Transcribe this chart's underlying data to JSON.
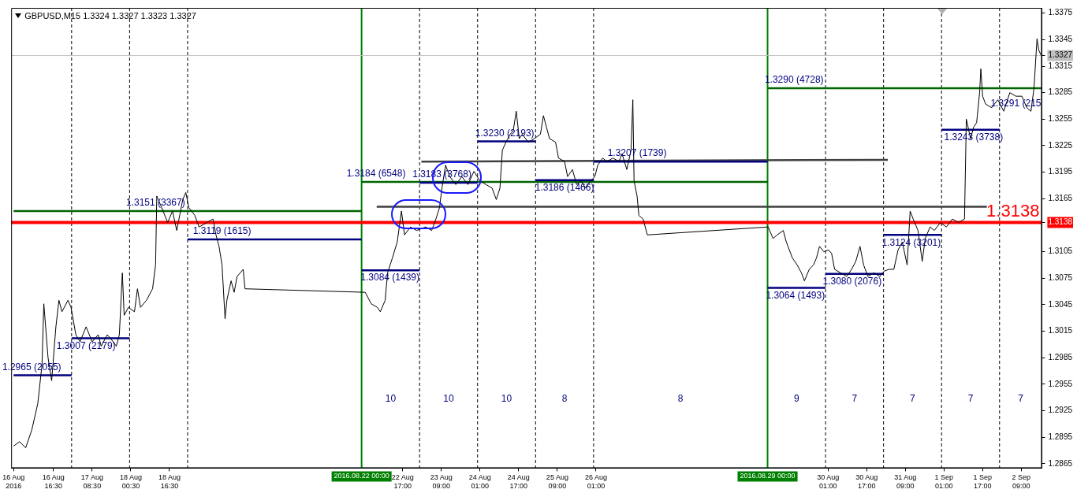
{
  "chart_data": {
    "type": "line",
    "title": "GBPUSD,M15  1.3324 1.3327 1.3323 1.3327",
    "marker": "none",
    "line_style": "solid",
    "xlim": [
      "2016-08-15T23:00",
      "2016-09-02T17:30"
    ],
    "ylim": [
      1.286,
      1.3381
    ],
    "xticks": [
      {
        "value": "2016-08-16T00:00",
        "label": "16 Aug 2016"
      },
      {
        "value": "2016-08-16T16:30",
        "label": "16 Aug 16:30"
      },
      {
        "value": "2016-08-17T08:30",
        "label": "17 Aug 08:30"
      },
      {
        "value": "2016-08-18T00:30",
        "label": "18 Aug 00:30"
      },
      {
        "value": "2016-08-18T16:30",
        "label": "18 Aug 16:30"
      },
      {
        "value": "2016-08-22T17:00",
        "label": "22 Aug 17:00"
      },
      {
        "value": "2016-08-23T09:00",
        "label": "23 Aug 09:00"
      },
      {
        "value": "2016-08-24T01:00",
        "label": "24 Aug 01:00"
      },
      {
        "value": "2016-08-24T17:00",
        "label": "24 Aug 17:00"
      },
      {
        "value": "2016-08-25T09:00",
        "label": "25 Aug 09:00"
      },
      {
        "value": "2016-08-26T01:00",
        "label": "26 Aug 01:00"
      },
      {
        "value": "2016-08-30T01:00",
        "label": "30 Aug 01:00"
      },
      {
        "value": "2016-08-30T17:00",
        "label": "30 Aug 17:00"
      },
      {
        "value": "2016-08-31T09:00",
        "label": "31 Aug 09:00"
      },
      {
        "value": "2016-09-01T01:00",
        "label": "1 Sep 01:00"
      },
      {
        "value": "2016-09-01T17:00",
        "label": "1 Sep 17:00"
      },
      {
        "value": "2016-09-02T09:00",
        "label": "2 Sep 09:00"
      }
    ],
    "yticks": [
      1.2865,
      1.2895,
      1.2925,
      1.2955,
      1.2985,
      1.3015,
      1.3045,
      1.3075,
      1.3105,
      1.3138,
      1.3165,
      1.3195,
      1.3225,
      1.3255,
      1.3285,
      1.3315,
      1.3327,
      1.3345,
      1.3375
    ],
    "series": [
      {
        "color": "#000000",
        "x": [
          "2016-08-16T00:00",
          "2016-08-16T02:30",
          "2016-08-16T05:00",
          "2016-08-16T07:30",
          "2016-08-16T10:00",
          "2016-08-16T11:45",
          "2016-08-16T12:30",
          "2016-08-16T14:15",
          "2016-08-16T15:45",
          "2016-08-16T17:30",
          "2016-08-16T18:45",
          "2016-08-16T20:00",
          "2016-08-16T22:30",
          "2016-08-16T23:45",
          "2016-08-17T01:45",
          "2016-08-17T03:30",
          "2016-08-17T06:00",
          "2016-08-17T08:30",
          "2016-08-17T11:00",
          "2016-08-17T12:15",
          "2016-08-17T14:45",
          "2016-08-17T17:15",
          "2016-08-17T18:30",
          "2016-08-17T19:45",
          "2016-08-17T21:00",
          "2016-08-17T21:45",
          "2016-08-17T23:30",
          "2016-08-18T02:00",
          "2016-08-18T03:15",
          "2016-08-18T04:30",
          "2016-08-18T07:00",
          "2016-08-18T09:30",
          "2016-08-18T10:45",
          "2016-08-18T11:15",
          "2016-08-18T13:15",
          "2016-08-18T15:45",
          "2016-08-18T17:45",
          "2016-08-18T19:30",
          "2016-08-18T22:00",
          "2016-08-18T23:15",
          "2016-08-19T00:30",
          "2016-08-19T03:00",
          "2016-08-19T04:45",
          "2016-08-19T08:00",
          "2016-08-19T10:30",
          "2016-08-19T11:45",
          "2016-08-19T13:00",
          "2016-08-19T14:15",
          "2016-08-19T15:30",
          "2016-08-19T16:15",
          "2016-08-19T18:00",
          "2016-08-19T19:15",
          "2016-08-19T20:30",
          "2016-08-19T23:00",
          "2016-08-19T23:45",
          "2016-08-22T01:30",
          "2016-08-22T04:00",
          "2016-08-22T06:30",
          "2016-08-22T07:45",
          "2016-08-22T09:45",
          "2016-08-22T10:45",
          "2016-08-22T12:45",
          "2016-08-22T14:45",
          "2016-08-22T16:30",
          "2016-08-22T17:45",
          "2016-08-22T20:15",
          "2016-08-22T22:45",
          "2016-08-23T02:30",
          "2016-08-23T05:00",
          "2016-08-23T06:45",
          "2016-08-23T08:15",
          "2016-08-23T09:15",
          "2016-08-23T10:45",
          "2016-08-23T12:30",
          "2016-08-23T15:00",
          "2016-08-23T17:30",
          "2016-08-23T20:00",
          "2016-08-23T22:30",
          "2016-08-24T01:00",
          "2016-08-24T03:30",
          "2016-08-24T06:00",
          "2016-08-24T07:45",
          "2016-08-24T09:15",
          "2016-08-24T10:15",
          "2016-08-24T11:45",
          "2016-08-24T13:30",
          "2016-08-24T14:45",
          "2016-08-24T16:00",
          "2016-08-24T17:15",
          "2016-08-24T18:30",
          "2016-08-24T21:00",
          "2016-08-24T23:30",
          "2016-08-25T02:00",
          "2016-08-25T03:15",
          "2016-08-25T04:30",
          "2016-08-25T05:45",
          "2016-08-25T08:15",
          "2016-08-25T09:30",
          "2016-08-25T12:00",
          "2016-08-25T13:15",
          "2016-08-25T15:15",
          "2016-08-25T17:00",
          "2016-08-25T18:45",
          "2016-08-25T20:45",
          "2016-08-25T22:45",
          "2016-08-26T00:30",
          "2016-08-26T01:45",
          "2016-08-26T03:45",
          "2016-08-26T05:30",
          "2016-08-26T08:00",
          "2016-08-26T10:30",
          "2016-08-26T11:45",
          "2016-08-26T13:45",
          "2016-08-26T15:30",
          "2016-08-26T16:15",
          "2016-08-26T16:45",
          "2016-08-26T18:00",
          "2016-08-26T18:45",
          "2016-08-26T20:30",
          "2016-08-26T22:15",
          "2016-08-29T00:15",
          "2016-08-29T02:15",
          "2016-08-29T04:00",
          "2016-08-29T06:30",
          "2016-08-29T07:45",
          "2016-08-29T10:15",
          "2016-08-29T12:15",
          "2016-08-29T14:00",
          "2016-08-29T15:15",
          "2016-08-29T17:15",
          "2016-08-29T19:00",
          "2016-08-29T20:15",
          "2016-08-29T21:30",
          "2016-08-29T23:15",
          "2016-08-30T01:15",
          "2016-08-30T02:30",
          "2016-08-30T03:45",
          "2016-08-30T06:15",
          "2016-08-30T08:45",
          "2016-08-30T10:45",
          "2016-08-30T12:30",
          "2016-08-30T14:15",
          "2016-08-30T15:45",
          "2016-08-30T17:30",
          "2016-08-30T20:00",
          "2016-08-30T22:30",
          "2016-08-31T00:15",
          "2016-08-31T02:15",
          "2016-08-31T04:15",
          "2016-08-31T06:00",
          "2016-08-31T07:45",
          "2016-08-31T09:45",
          "2016-08-31T11:00",
          "2016-08-31T12:15",
          "2016-08-31T14:15",
          "2016-08-31T16:00",
          "2016-08-31T17:15",
          "2016-08-31T19:15",
          "2016-08-31T21:00",
          "2016-08-31T23:30",
          "2016-09-01T02:00",
          "2016-09-01T04:30",
          "2016-09-01T07:00",
          "2016-09-01T09:30",
          "2016-09-01T10:15",
          "2016-09-01T12:00",
          "2016-09-01T13:15",
          "2016-09-01T14:30",
          "2016-09-01T15:45",
          "2016-09-01T16:15",
          "2016-09-01T17:00",
          "2016-09-01T18:15",
          "2016-09-01T20:45",
          "2016-09-01T23:15",
          "2016-09-02T01:45",
          "2016-09-02T04:15",
          "2016-09-02T06:45",
          "2016-09-02T09:15",
          "2016-09-02T11:15",
          "2016-09-02T13:00",
          "2016-09-02T14:15",
          "2016-09-02T15:30",
          "2016-09-02T16:15",
          "2016-09-02T17:15"
        ],
        "values": [
          1.2885,
          1.289,
          1.2883,
          1.2903,
          1.2933,
          1.2977,
          1.3046,
          1.2985,
          1.2959,
          1.302,
          1.305,
          1.3037,
          1.305,
          1.3042,
          1.3011,
          1.3003,
          1.302,
          1.3003,
          1.3011,
          1.2998,
          1.3011,
          1.3003,
          1.2998,
          1.3011,
          1.3081,
          1.3033,
          1.3042,
          1.3037,
          1.3063,
          1.3042,
          1.305,
          1.3063,
          1.309,
          1.3168,
          1.3155,
          1.3138,
          1.3151,
          1.3129,
          1.3164,
          1.3172,
          1.3155,
          1.3146,
          1.3133,
          1.3138,
          1.3142,
          1.3124,
          1.3111,
          1.309,
          1.3029,
          1.305,
          1.3072,
          1.3059,
          1.3077,
          1.3085,
          1.3063,
          1.3059,
          1.3046,
          1.3042,
          1.3037,
          1.305,
          1.3081,
          1.3098,
          1.3116,
          1.3151,
          1.3124,
          1.3133,
          1.3129,
          1.3133,
          1.3129,
          1.3142,
          1.3155,
          1.3177,
          1.3203,
          1.319,
          1.3181,
          1.319,
          1.3181,
          1.3196,
          1.3185,
          1.3181,
          1.3177,
          1.3164,
          1.3177,
          1.322,
          1.3229,
          1.3238,
          1.3242,
          1.3264,
          1.3233,
          1.3238,
          1.3229,
          1.3233,
          1.3238,
          1.3259,
          1.3246,
          1.3233,
          1.3229,
          1.3211,
          1.3207,
          1.319,
          1.3198,
          1.3181,
          1.3185,
          1.3177,
          1.3185,
          1.319,
          1.3203,
          1.3211,
          1.3207,
          1.3211,
          1.3207,
          1.3216,
          1.3198,
          1.322,
          1.3277,
          1.3185,
          1.3168,
          1.3146,
          1.3142,
          1.3124,
          1.3133,
          1.312,
          1.3124,
          1.3129,
          1.3116,
          1.3098,
          1.309,
          1.3081,
          1.3072,
          1.3085,
          1.309,
          1.3098,
          1.3111,
          1.3105,
          1.3107,
          1.3103,
          1.3085,
          1.3081,
          1.3077,
          1.3085,
          1.3094,
          1.3111,
          1.309,
          1.3077,
          1.3081,
          1.3077,
          1.3083,
          1.3085,
          1.3085,
          1.3107,
          1.3116,
          1.309,
          1.3151,
          1.3142,
          1.3129,
          1.3094,
          1.312,
          1.3133,
          1.3129,
          1.3138,
          1.3133,
          1.3142,
          1.3138,
          1.3142,
          1.3255,
          1.3233,
          1.3246,
          1.3251,
          1.3285,
          1.3312,
          1.3281,
          1.3272,
          1.3268,
          1.3277,
          1.3264,
          1.3285,
          1.3281,
          1.3281,
          1.3268,
          1.3264,
          1.329,
          1.3346,
          1.3333,
          1.3327
        ]
      },
      {
        "color": "#000080",
        "x": [
          "2016-08-16T00:00",
          "2016-08-17T00:00"
        ],
        "values": [
          1.2965,
          1.2965
        ]
      },
      {
        "color": "#000080",
        "x": [
          "2016-08-17T00:00",
          "2016-08-18T00:00"
        ],
        "values": [
          1.3007,
          1.3007
        ]
      },
      {
        "color": "#000080",
        "x": [
          "2016-08-19T00:00",
          "2016-08-22T00:00"
        ],
        "values": [
          1.3119,
          1.3119
        ]
      },
      {
        "color": "#000080",
        "x": [
          "2016-08-22T00:00",
          "2016-08-23T00:00"
        ],
        "values": [
          1.3084,
          1.3084
        ]
      },
      {
        "color": "#000080",
        "x": [
          "2016-08-23T00:00",
          "2016-08-24T00:00"
        ],
        "values": [
          1.3183,
          1.3183
        ]
      },
      {
        "color": "#000080",
        "x": [
          "2016-08-24T00:00",
          "2016-08-25T00:00"
        ],
        "values": [
          1.323,
          1.323
        ]
      },
      {
        "color": "#000080",
        "x": [
          "2016-08-25T00:00",
          "2016-08-26T00:00"
        ],
        "values": [
          1.3186,
          1.3186
        ]
      },
      {
        "color": "#000080",
        "x": [
          "2016-08-26T00:00",
          "2016-08-29T00:00"
        ],
        "values": [
          1.3207,
          1.3207
        ]
      },
      {
        "color": "#000080",
        "x": [
          "2016-08-29T00:00",
          "2016-08-30T00:00"
        ],
        "values": [
          1.3064,
          1.3064
        ]
      },
      {
        "color": "#000080",
        "x": [
          "2016-08-30T00:00",
          "2016-08-31T00:00"
        ],
        "values": [
          1.308,
          1.308
        ]
      },
      {
        "color": "#000080",
        "x": [
          "2016-08-31T00:00",
          "2016-09-01T00:00"
        ],
        "values": [
          1.3124,
          1.3124
        ]
      },
      {
        "color": "#000080",
        "x": [
          "2016-09-01T00:00",
          "2016-09-02T00:00"
        ],
        "values": [
          1.3243,
          1.3243
        ]
      },
      {
        "color": "#006400",
        "x": [
          "2016-08-16T00:00",
          "2016-08-22T00:00"
        ],
        "values": [
          1.3151,
          1.3151
        ]
      },
      {
        "color": "#006400",
        "x": [
          "2016-08-22T00:00",
          "2016-08-29T00:00"
        ],
        "values": [
          1.3184,
          1.3184
        ]
      },
      {
        "color": "#006400",
        "x": [
          "2016-08-29T00:00",
          "2016-09-02T17:30"
        ],
        "values": [
          1.329,
          1.329
        ]
      },
      {
        "color": "#404040",
        "x": [
          "2016-08-23T00:45",
          "2016-08-31T01:45"
        ],
        "values": [
          1.3207,
          1.3209
        ]
      },
      {
        "color": "#404040",
        "x": [
          "2016-08-22T06:15",
          "2016-09-01T18:45"
        ],
        "values": [
          1.3156,
          1.3156
        ]
      }
    ],
    "ref_lines": [
      {
        "axis": "x",
        "value": "2016-08-17T00:00",
        "color": "#000000",
        "line_style": "dashed"
      },
      {
        "axis": "x",
        "value": "2016-08-18T00:00",
        "color": "#000000",
        "line_style": "dashed"
      },
      {
        "axis": "x",
        "value": "2016-08-19T00:00",
        "color": "#000000",
        "line_style": "dashed"
      },
      {
        "axis": "x",
        "value": "2016-08-22T00:00",
        "color": "#008000",
        "line_style": "solid",
        "label": "2016.08.22 00:00"
      },
      {
        "axis": "x",
        "value": "2016-08-23T00:00",
        "color": "#000000",
        "line_style": "dashed"
      },
      {
        "axis": "x",
        "value": "2016-08-24T00:00",
        "color": "#000000",
        "line_style": "dashed"
      },
      {
        "axis": "x",
        "value": "2016-08-25T00:00",
        "color": "#000000",
        "line_style": "dashed"
      },
      {
        "axis": "x",
        "value": "2016-08-26T00:00",
        "color": "#000000",
        "line_style": "dashed"
      },
      {
        "axis": "x",
        "value": "2016-08-29T00:00",
        "color": "#008000",
        "line_style": "solid",
        "label": "2016.08.29 00:00"
      },
      {
        "axis": "x",
        "value": "2016-08-30T00:00",
        "color": "#000000",
        "line_style": "dashed"
      },
      {
        "axis": "x",
        "value": "2016-08-31T00:00",
        "color": "#000000",
        "line_style": "dashed"
      },
      {
        "axis": "x",
        "value": "2016-09-01T00:00",
        "color": "#000000",
        "line_style": "dashed"
      },
      {
        "axis": "x",
        "value": "2016-09-02T00:00",
        "color": "#000000",
        "line_style": "dashed"
      },
      {
        "axis": "y",
        "value": 1.3327,
        "color": "#c0c0c0",
        "line_style": "solid"
      },
      {
        "axis": "y",
        "value": 1.3138,
        "color": "#ff0000",
        "line_style": "solid",
        "label": "1.3138"
      }
    ],
    "annotations": [
      {
        "text": "1.2965 (2055)",
        "x": "2016-08-16T07:30",
        "y": 1.2965
      },
      {
        "text": "1.3007 (2179)",
        "x": "2016-08-17T06:00",
        "y": 1.3007
      },
      {
        "text": "1.3151 (3367)",
        "x": "2016-08-18T10:45",
        "y": 1.3151
      },
      {
        "text": "1.3119 (1615)",
        "x": "2016-08-19T14:15",
        "y": 1.3119
      },
      {
        "text": "1.3184 (6548)",
        "x": "2016-08-22T06:00",
        "y": 1.3184
      },
      {
        "text": "1.3084 (1439)",
        "x": "2016-08-22T11:45",
        "y": 1.3084
      },
      {
        "text": "1.3183 (3768)",
        "x": "2016-08-23T09:15",
        "y": 1.3183
      },
      {
        "text": "1.3230 (2193)",
        "x": "2016-08-24T11:15",
        "y": 1.323
      },
      {
        "text": "1.3186 (1466)",
        "x": "2016-08-25T12:00",
        "y": 1.3186
      },
      {
        "text": "1.3207 (1739)",
        "x": "2016-08-26T18:00",
        "y": 1.3207
      },
      {
        "text": "1.3290 (4728)",
        "x": "2016-08-29T11:00",
        "y": 1.329
      },
      {
        "text": "1.3064 (1493)",
        "x": "2016-08-29T11:30",
        "y": 1.3064
      },
      {
        "text": "1.3080 (2076)",
        "x": "2016-08-30T11:00",
        "y": 1.308
      },
      {
        "text": "1.3124 (3201)",
        "x": "2016-08-31T11:30",
        "y": 1.3124
      },
      {
        "text": "1.3243 (3738)",
        "x": "2016-09-01T13:15",
        "y": 1.3243
      },
      {
        "text": "1.3291 (215",
        "x": "2016-09-02T06:45",
        "y": 1.3281
      },
      "10",
      "10",
      "10",
      "8",
      "8",
      "9",
      "7",
      "7",
      "7",
      "7"
    ]
  }
}
